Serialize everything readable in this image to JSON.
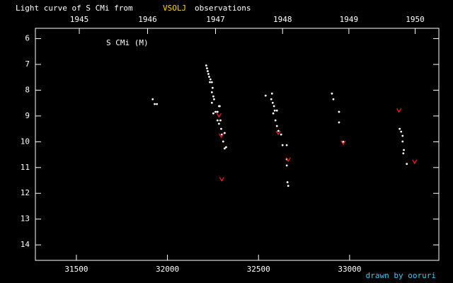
{
  "chart_data": {
    "type": "scatter",
    "title": "Light curve of S CMi from",
    "source": "VSOLJ",
    "title_end": "observations",
    "star_label": "S CMi (M)",
    "credit": "drawn by ooruri",
    "background": "#000000",
    "axis_color": "#ffffff",
    "source_color": "#ffd700",
    "credit_color": "#33ccff",
    "xlim": [
      31275,
      33490
    ],
    "xticks": [
      31500,
      32000,
      32500,
      33000
    ],
    "x2ticks": [
      {
        "value": 31516,
        "label": "1945"
      },
      {
        "value": 31891,
        "label": "1946"
      },
      {
        "value": 32264,
        "label": "1947"
      },
      {
        "value": 32632,
        "label": "1948"
      },
      {
        "value": 32996,
        "label": "1949"
      },
      {
        "value": 33360,
        "label": "1950"
      }
    ],
    "ylim": [
      14.6,
      5.6
    ],
    "yticks": [
      6,
      7,
      8,
      9,
      10,
      11,
      12,
      13,
      14
    ],
    "series": [
      {
        "marker": "dot",
        "color": "#ffffff",
        "x": [
          31919,
          31930,
          31942,
          32213,
          32217,
          32221,
          32225,
          32229,
          32236,
          32233,
          32244,
          32248,
          32244,
          32252,
          32256,
          32244,
          32264,
          32275,
          32287,
          32283,
          32252,
          32275,
          32291,
          32283,
          32295,
          32314,
          32298,
          32306,
          32314,
          32322,
          32539,
          32574,
          32570,
          32578,
          32585,
          32589,
          32601,
          32581,
          32593,
          32601,
          32609,
          32624,
          32632,
          32655,
          32655,
          32655,
          32659,
          32663,
          32903,
          32911,
          32942,
          32942,
          32965,
          33275,
          33283,
          33291,
          33291,
          33298,
          33295,
          33314
        ],
        "values": [
          8.35,
          8.54,
          8.54,
          7.04,
          7.15,
          7.26,
          7.37,
          7.48,
          7.58,
          7.69,
          7.69,
          7.91,
          8.08,
          8.24,
          8.35,
          8.49,
          8.84,
          8.84,
          8.62,
          8.62,
          8.9,
          9.17,
          9.17,
          9.3,
          9.5,
          9.66,
          9.72,
          9.99,
          10.26,
          10.21,
          8.21,
          8.13,
          8.35,
          8.49,
          8.62,
          8.79,
          8.79,
          8.9,
          9.17,
          9.39,
          9.58,
          9.72,
          10.13,
          10.13,
          10.68,
          10.92,
          11.57,
          11.71,
          8.13,
          8.35,
          8.84,
          9.25,
          10.0,
          9.5,
          9.61,
          9.77,
          9.99,
          10.32,
          10.45,
          10.86
        ]
      },
      {
        "marker": "v",
        "color": "#ff2020",
        "x": [
          32283,
          32295,
          32298,
          32609,
          32663,
          32965,
          33271,
          33357
        ],
        "values": [
          8.98,
          9.77,
          11.46,
          9.66,
          10.7,
          10.04,
          8.79,
          10.78
        ]
      }
    ]
  }
}
